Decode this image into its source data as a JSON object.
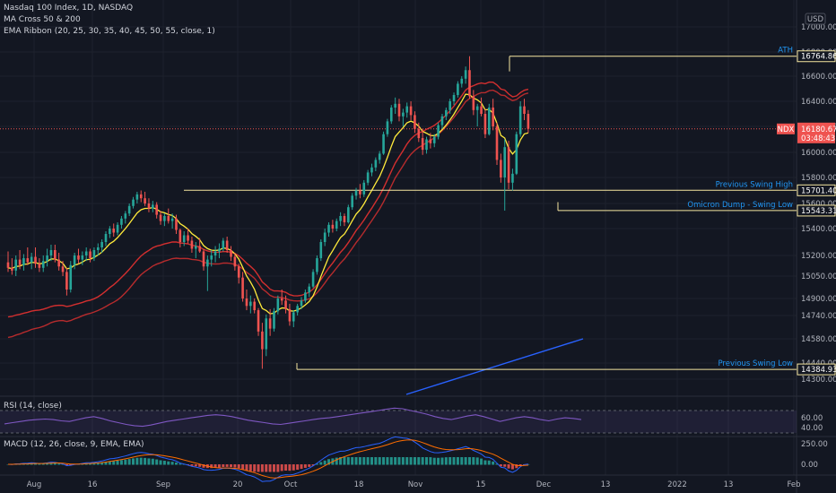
{
  "legend": {
    "title": "Nasdaq 100 Index, 1D, NASDAQ",
    "ma_cross": "MA Cross 50 & 200",
    "ema_ribbon": "EMA Ribbon (20, 25, 30, 35, 40, 45, 50, 55, close, 1)",
    "rsi": "RSI (14, close)",
    "macd": "MACD (12, 26, close, 9, EMA, EMA)"
  },
  "currency": "USD",
  "colors": {
    "background": "#131722",
    "up": "#26a69a",
    "down": "#ef5350",
    "ema": "#ffeb3b",
    "ma": "#d32f2f",
    "ma200": "#2962ff",
    "level": "#f5e6a0",
    "annotation": "#2196f3",
    "rsi": "#7e57c2",
    "macd": "#2962ff",
    "signal": "#ff6d00"
  },
  "chart_data": [
    {
      "type": "candlestick",
      "y_ticks": [
        "17000.00",
        "16800.00",
        "16600.00",
        "16400.00",
        "16200.00",
        "16000.00",
        "15800.00",
        "15600.00",
        "15400.00",
        "15200.00",
        "15050.00",
        "14900.00",
        "14740.00",
        "14580.00",
        "14440.00",
        "14300.00"
      ],
      "x_ticks": [
        "Aug",
        "16",
        "Sep",
        "20",
        "Oct",
        "18",
        "Nov",
        "15",
        "Dec",
        "13",
        "2022",
        "13",
        "Feb"
      ],
      "last_price": "16180.67",
      "last_price_symbol": "NDX",
      "countdown": "03:48:43",
      "levels": [
        {
          "label": "ATH",
          "value": "16764.86"
        },
        {
          "label": "Previous Swing High",
          "value": "15701.40"
        },
        {
          "label": "Omicron Dump - Swing Low",
          "value": "15543.31"
        },
        {
          "label": "Previous Swing Low",
          "value": "14384.93"
        }
      ],
      "candles": [
        {
          "o": 15150,
          "h": 15230,
          "l": 15080,
          "c": 15110
        },
        {
          "o": 15110,
          "h": 15180,
          "l": 15060,
          "c": 15090
        },
        {
          "o": 15090,
          "h": 15200,
          "l": 15050,
          "c": 15170
        },
        {
          "o": 15170,
          "h": 15240,
          "l": 15100,
          "c": 15130
        },
        {
          "o": 15130,
          "h": 15210,
          "l": 15090,
          "c": 15180
        },
        {
          "o": 15180,
          "h": 15260,
          "l": 15130,
          "c": 15150
        },
        {
          "o": 15150,
          "h": 15220,
          "l": 15100,
          "c": 15190
        },
        {
          "o": 15190,
          "h": 15260,
          "l": 15110,
          "c": 15140
        },
        {
          "o": 15140,
          "h": 15180,
          "l": 15080,
          "c": 15110
        },
        {
          "o": 15110,
          "h": 15200,
          "l": 15080,
          "c": 15160
        },
        {
          "o": 15160,
          "h": 15250,
          "l": 15120,
          "c": 15200
        },
        {
          "o": 15200,
          "h": 15280,
          "l": 15160,
          "c": 15240
        },
        {
          "o": 15240,
          "h": 15280,
          "l": 15150,
          "c": 15170
        },
        {
          "o": 15170,
          "h": 15220,
          "l": 15090,
          "c": 15120
        },
        {
          "o": 15120,
          "h": 15160,
          "l": 15050,
          "c": 15080
        },
        {
          "o": 15080,
          "h": 15110,
          "l": 14920,
          "c": 14960
        },
        {
          "o": 14960,
          "h": 15160,
          "l": 14940,
          "c": 15130
        },
        {
          "o": 15130,
          "h": 15220,
          "l": 15100,
          "c": 15200
        },
        {
          "o": 15200,
          "h": 15250,
          "l": 15140,
          "c": 15170
        },
        {
          "o": 15170,
          "h": 15230,
          "l": 15130,
          "c": 15200
        },
        {
          "o": 15200,
          "h": 15260,
          "l": 15160,
          "c": 15230
        },
        {
          "o": 15230,
          "h": 15250,
          "l": 15150,
          "c": 15180
        },
        {
          "o": 15180,
          "h": 15260,
          "l": 15160,
          "c": 15240
        },
        {
          "o": 15240,
          "h": 15290,
          "l": 15200,
          "c": 15260
        },
        {
          "o": 15260,
          "h": 15320,
          "l": 15220,
          "c": 15300
        },
        {
          "o": 15300,
          "h": 15380,
          "l": 15270,
          "c": 15360
        },
        {
          "o": 15360,
          "h": 15420,
          "l": 15330,
          "c": 15400
        },
        {
          "o": 15400,
          "h": 15440,
          "l": 15340,
          "c": 15370
        },
        {
          "o": 15370,
          "h": 15450,
          "l": 15350,
          "c": 15430
        },
        {
          "o": 15430,
          "h": 15500,
          "l": 15400,
          "c": 15480
        },
        {
          "o": 15480,
          "h": 15540,
          "l": 15440,
          "c": 15520
        },
        {
          "o": 15520,
          "h": 15600,
          "l": 15500,
          "c": 15580
        },
        {
          "o": 15580,
          "h": 15650,
          "l": 15560,
          "c": 15630
        },
        {
          "o": 15630,
          "h": 15690,
          "l": 15600,
          "c": 15670
        },
        {
          "o": 15670,
          "h": 15700,
          "l": 15610,
          "c": 15640
        },
        {
          "o": 15640,
          "h": 15690,
          "l": 15580,
          "c": 15600
        },
        {
          "o": 15600,
          "h": 15640,
          "l": 15530,
          "c": 15560
        },
        {
          "o": 15560,
          "h": 15620,
          "l": 15530,
          "c": 15590
        },
        {
          "o": 15590,
          "h": 15610,
          "l": 15480,
          "c": 15510
        },
        {
          "o": 15510,
          "h": 15540,
          "l": 15430,
          "c": 15460
        },
        {
          "o": 15460,
          "h": 15520,
          "l": 15420,
          "c": 15500
        },
        {
          "o": 15500,
          "h": 15560,
          "l": 15440,
          "c": 15460
        },
        {
          "o": 15460,
          "h": 15520,
          "l": 15400,
          "c": 15480
        },
        {
          "o": 15480,
          "h": 15510,
          "l": 15360,
          "c": 15390
        },
        {
          "o": 15390,
          "h": 15400,
          "l": 15260,
          "c": 15300
        },
        {
          "o": 15300,
          "h": 15380,
          "l": 15270,
          "c": 15350
        },
        {
          "o": 15350,
          "h": 15400,
          "l": 15290,
          "c": 15310
        },
        {
          "o": 15310,
          "h": 15340,
          "l": 15220,
          "c": 15250
        },
        {
          "o": 15250,
          "h": 15300,
          "l": 15180,
          "c": 15270
        },
        {
          "o": 15270,
          "h": 15330,
          "l": 15220,
          "c": 15230
        },
        {
          "o": 15230,
          "h": 15250,
          "l": 15090,
          "c": 15120
        },
        {
          "o": 15120,
          "h": 15200,
          "l": 14950,
          "c": 15170
        },
        {
          "o": 15170,
          "h": 15240,
          "l": 15120,
          "c": 15200
        },
        {
          "o": 15200,
          "h": 15270,
          "l": 15150,
          "c": 15230
        },
        {
          "o": 15230,
          "h": 15290,
          "l": 15180,
          "c": 15250
        },
        {
          "o": 15250,
          "h": 15330,
          "l": 15230,
          "c": 15310
        },
        {
          "o": 15310,
          "h": 15340,
          "l": 15220,
          "c": 15240
        },
        {
          "o": 15240,
          "h": 15270,
          "l": 15160,
          "c": 15190
        },
        {
          "o": 15190,
          "h": 15220,
          "l": 15090,
          "c": 15120
        },
        {
          "o": 15120,
          "h": 15140,
          "l": 15000,
          "c": 15040
        },
        {
          "o": 15040,
          "h": 15080,
          "l": 14870,
          "c": 14900
        },
        {
          "o": 14900,
          "h": 14960,
          "l": 14790,
          "c": 14830
        },
        {
          "o": 14830,
          "h": 14920,
          "l": 14760,
          "c": 14870
        },
        {
          "o": 14870,
          "h": 14900,
          "l": 14760,
          "c": 14790
        },
        {
          "o": 14790,
          "h": 14810,
          "l": 14600,
          "c": 14630
        },
        {
          "o": 14630,
          "h": 14690,
          "l": 14390,
          "c": 14520
        },
        {
          "o": 14520,
          "h": 14750,
          "l": 14480,
          "c": 14720
        },
        {
          "o": 14720,
          "h": 14800,
          "l": 14600,
          "c": 14650
        },
        {
          "o": 14650,
          "h": 14810,
          "l": 14630,
          "c": 14780
        },
        {
          "o": 14780,
          "h": 14920,
          "l": 14750,
          "c": 14900
        },
        {
          "o": 14900,
          "h": 14960,
          "l": 14840,
          "c": 14880
        },
        {
          "o": 14880,
          "h": 14920,
          "l": 14760,
          "c": 14800
        },
        {
          "o": 14800,
          "h": 14850,
          "l": 14670,
          "c": 14700
        },
        {
          "o": 14700,
          "h": 14790,
          "l": 14660,
          "c": 14770
        },
        {
          "o": 14770,
          "h": 14850,
          "l": 14740,
          "c": 14830
        },
        {
          "o": 14830,
          "h": 14910,
          "l": 14800,
          "c": 14880
        },
        {
          "o": 14880,
          "h": 14960,
          "l": 14860,
          "c": 14940
        },
        {
          "o": 14940,
          "h": 15000,
          "l": 14910,
          "c": 14980
        },
        {
          "o": 14980,
          "h": 15100,
          "l": 14970,
          "c": 15080
        },
        {
          "o": 15080,
          "h": 15200,
          "l": 15060,
          "c": 15180
        },
        {
          "o": 15180,
          "h": 15320,
          "l": 15160,
          "c": 15300
        },
        {
          "o": 15300,
          "h": 15400,
          "l": 15270,
          "c": 15370
        },
        {
          "o": 15370,
          "h": 15450,
          "l": 15340,
          "c": 15430
        },
        {
          "o": 15430,
          "h": 15470,
          "l": 15370,
          "c": 15400
        },
        {
          "o": 15400,
          "h": 15480,
          "l": 15380,
          "c": 15460
        },
        {
          "o": 15460,
          "h": 15530,
          "l": 15420,
          "c": 15500
        },
        {
          "o": 15500,
          "h": 15520,
          "l": 15420,
          "c": 15450
        },
        {
          "o": 15450,
          "h": 15590,
          "l": 15440,
          "c": 15570
        },
        {
          "o": 15570,
          "h": 15680,
          "l": 15550,
          "c": 15660
        },
        {
          "o": 15660,
          "h": 15720,
          "l": 15630,
          "c": 15700
        },
        {
          "o": 15700,
          "h": 15750,
          "l": 15640,
          "c": 15670
        },
        {
          "o": 15670,
          "h": 15780,
          "l": 15650,
          "c": 15760
        },
        {
          "o": 15760,
          "h": 15860,
          "l": 15740,
          "c": 15840
        },
        {
          "o": 15840,
          "h": 15910,
          "l": 15810,
          "c": 15880
        },
        {
          "o": 15880,
          "h": 15960,
          "l": 15850,
          "c": 15940
        },
        {
          "o": 15940,
          "h": 16010,
          "l": 15910,
          "c": 15990
        },
        {
          "o": 15990,
          "h": 16160,
          "l": 15980,
          "c": 16140
        },
        {
          "o": 16140,
          "h": 16260,
          "l": 16120,
          "c": 16240
        },
        {
          "o": 16240,
          "h": 16370,
          "l": 16220,
          "c": 16350
        },
        {
          "o": 16350,
          "h": 16430,
          "l": 16300,
          "c": 16380
        },
        {
          "o": 16380,
          "h": 16420,
          "l": 16240,
          "c": 16280
        },
        {
          "o": 16280,
          "h": 16340,
          "l": 16200,
          "c": 16310
        },
        {
          "o": 16310,
          "h": 16390,
          "l": 16270,
          "c": 16360
        },
        {
          "o": 16360,
          "h": 16400,
          "l": 16250,
          "c": 16290
        },
        {
          "o": 16290,
          "h": 16320,
          "l": 16150,
          "c": 16180
        },
        {
          "o": 16180,
          "h": 16230,
          "l": 16080,
          "c": 16110
        },
        {
          "o": 16110,
          "h": 16180,
          "l": 15980,
          "c": 16020
        },
        {
          "o": 16020,
          "h": 16120,
          "l": 15990,
          "c": 16100
        },
        {
          "o": 16100,
          "h": 16150,
          "l": 16030,
          "c": 16070
        },
        {
          "o": 16070,
          "h": 16140,
          "l": 16040,
          "c": 16120
        },
        {
          "o": 16120,
          "h": 16230,
          "l": 16100,
          "c": 16210
        },
        {
          "o": 16210,
          "h": 16300,
          "l": 16180,
          "c": 16280
        },
        {
          "o": 16280,
          "h": 16350,
          "l": 16250,
          "c": 16330
        },
        {
          "o": 16330,
          "h": 16420,
          "l": 16300,
          "c": 16400
        },
        {
          "o": 16400,
          "h": 16470,
          "l": 16370,
          "c": 16450
        },
        {
          "o": 16450,
          "h": 16560,
          "l": 16430,
          "c": 16540
        },
        {
          "o": 16540,
          "h": 16600,
          "l": 16510,
          "c": 16580
        },
        {
          "o": 16580,
          "h": 16680,
          "l": 16540,
          "c": 16650
        },
        {
          "o": 16650,
          "h": 16765,
          "l": 16420,
          "c": 16440
        },
        {
          "o": 16440,
          "h": 16490,
          "l": 16290,
          "c": 16330
        },
        {
          "o": 16330,
          "h": 16380,
          "l": 16200,
          "c": 16360
        },
        {
          "o": 16360,
          "h": 16430,
          "l": 16280,
          "c": 16300
        },
        {
          "o": 16300,
          "h": 16340,
          "l": 16110,
          "c": 16140
        },
        {
          "o": 16140,
          "h": 16380,
          "l": 16130,
          "c": 16350
        },
        {
          "o": 16350,
          "h": 16420,
          "l": 16170,
          "c": 16200
        },
        {
          "o": 16200,
          "h": 16230,
          "l": 15900,
          "c": 15940
        },
        {
          "o": 15940,
          "h": 15990,
          "l": 15760,
          "c": 15800
        },
        {
          "o": 15800,
          "h": 16100,
          "l": 15543,
          "c": 16040
        },
        {
          "o": 16040,
          "h": 16090,
          "l": 15710,
          "c": 15760
        },
        {
          "o": 15760,
          "h": 15870,
          "l": 15700,
          "c": 15830
        },
        {
          "o": 15830,
          "h": 16160,
          "l": 15820,
          "c": 16140
        },
        {
          "o": 16140,
          "h": 16400,
          "l": 16120,
          "c": 16360
        },
        {
          "o": 16360,
          "h": 16420,
          "l": 16250,
          "c": 16300
        },
        {
          "o": 16300,
          "h": 16330,
          "l": 16150,
          "c": 16181
        }
      ]
    },
    {
      "type": "line",
      "title": "RSI (14, close)",
      "y_ticks": [
        "60.00",
        "40.00"
      ],
      "values": [
        48,
        50,
        52,
        54,
        55,
        56,
        55,
        53,
        52,
        55,
        58,
        60,
        57,
        53,
        50,
        47,
        45,
        44,
        46,
        49,
        52,
        54,
        56,
        58,
        60,
        62,
        63,
        62,
        60,
        57,
        54,
        52,
        50,
        48,
        47,
        49,
        51,
        53,
        55,
        57,
        58,
        60,
        62,
        64,
        66,
        68,
        70,
        72,
        74,
        73,
        70,
        67,
        64,
        60,
        57,
        55,
        58,
        61,
        63,
        60,
        56,
        52,
        55,
        58,
        60,
        58,
        55,
        53,
        56,
        58,
        57,
        55
      ]
    },
    {
      "type": "histogram",
      "title": "MACD (12, 26, close, 9, EMA, EMA)",
      "y_ticks": [
        "250.00",
        "0.00"
      ]
    }
  ]
}
